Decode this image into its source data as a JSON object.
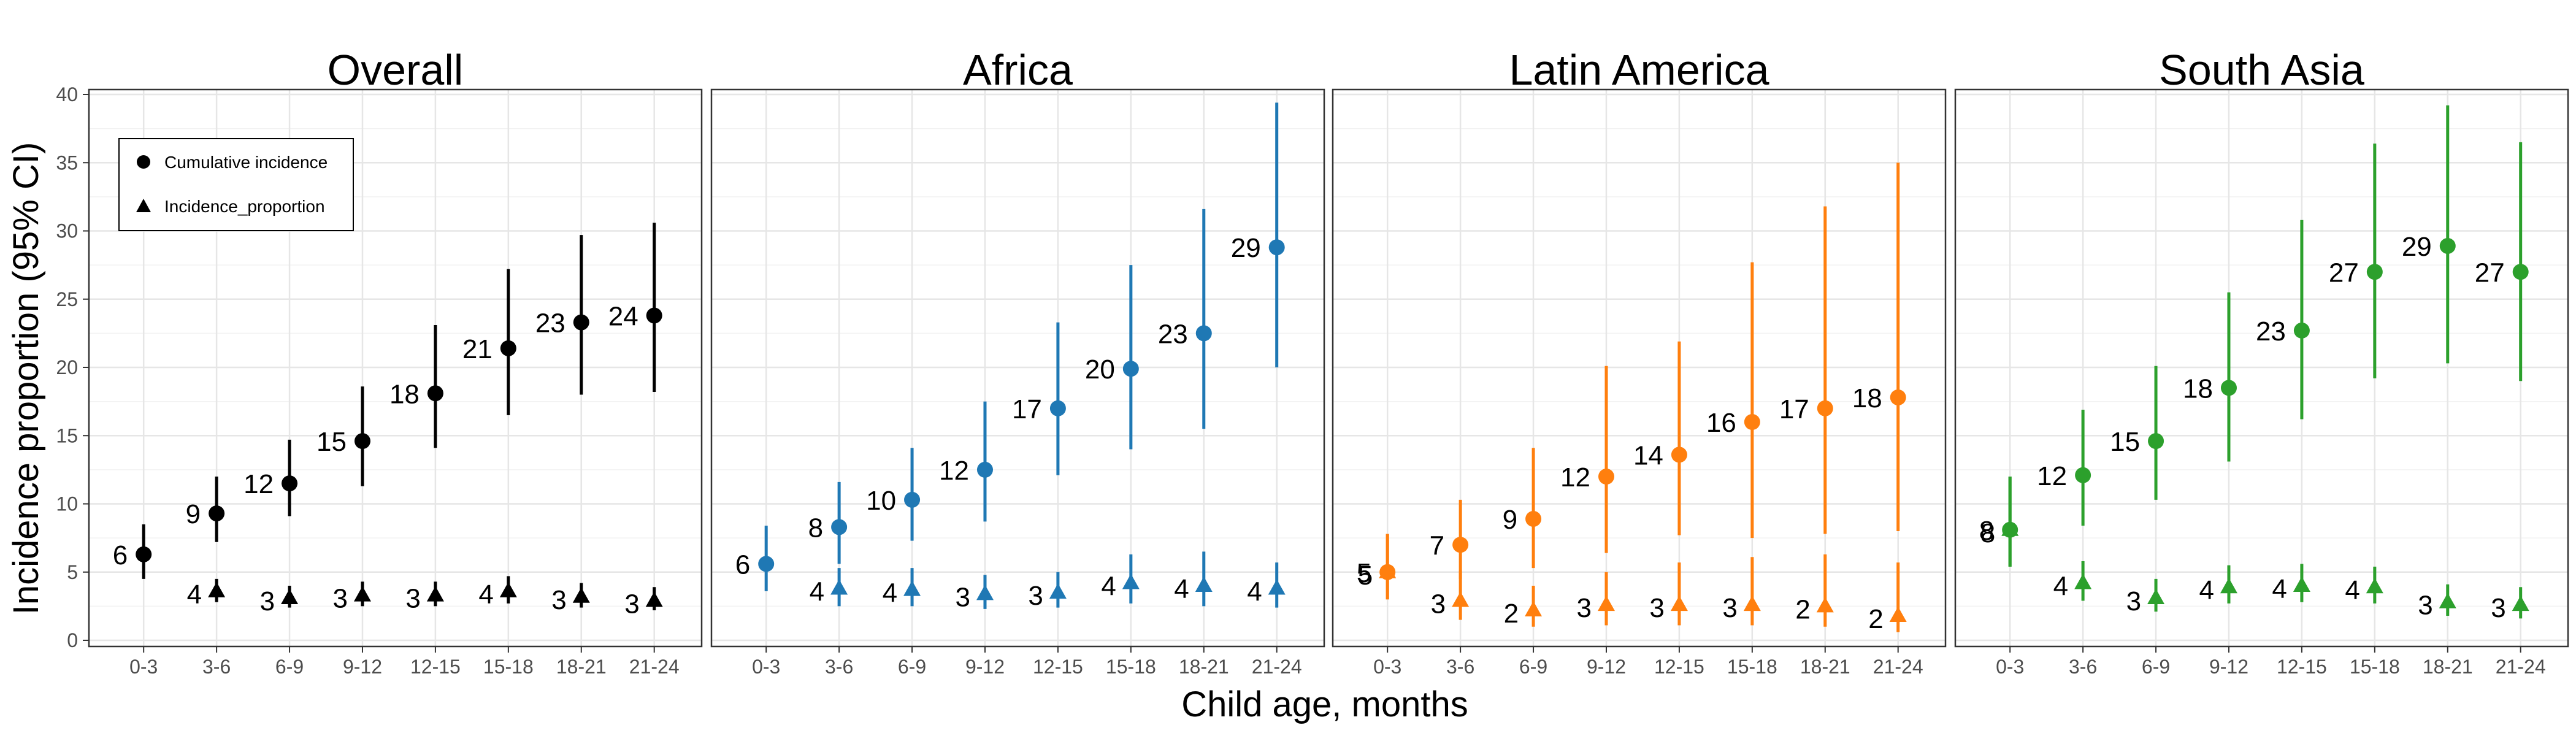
{
  "chart_data": {
    "type": "scatter",
    "shared_ylabel": "Incidence proportion (95% CI)",
    "shared_xlabel": "Child age, months",
    "ylim": [
      0,
      40
    ],
    "yticks": [
      "0",
      "5",
      "10",
      "15",
      "20",
      "25",
      "30",
      "35",
      "40"
    ],
    "categories": [
      "0-3",
      "3-6",
      "6-9",
      "9-12",
      "12-15",
      "15-18",
      "18-21",
      "21-24"
    ],
    "grid": true,
    "legend": {
      "placement": "top-left of first panel",
      "entries": [
        {
          "label": "Cumulative incidence",
          "marker": "circle"
        },
        {
          "label": "Incidence_proportion",
          "marker": "triangle"
        }
      ]
    },
    "panels": [
      {
        "title": "Overall",
        "color": "#000000",
        "cumulative": [
          {
            "x": "0-3",
            "y": 6.3,
            "lo": 4.5,
            "hi": 8.5,
            "label": "6"
          },
          {
            "x": "3-6",
            "y": 9.3,
            "lo": 7.2,
            "hi": 12.0,
            "label": "9"
          },
          {
            "x": "6-9",
            "y": 11.5,
            "lo": 9.1,
            "hi": 14.7,
            "label": "12"
          },
          {
            "x": "9-12",
            "y": 14.6,
            "lo": 11.3,
            "hi": 18.6,
            "label": "15"
          },
          {
            "x": "12-15",
            "y": 18.1,
            "lo": 14.1,
            "hi": 23.1,
            "label": "18"
          },
          {
            "x": "15-18",
            "y": 21.4,
            "lo": 16.5,
            "hi": 27.2,
            "label": "21"
          },
          {
            "x": "18-21",
            "y": 23.3,
            "lo": 18.0,
            "hi": 29.7,
            "label": "23"
          },
          {
            "x": "21-24",
            "y": 23.8,
            "lo": 18.2,
            "hi": 30.6,
            "label": "24"
          }
        ],
        "incidence": [
          {
            "x": "3-6",
            "y": 3.6,
            "lo": 2.8,
            "hi": 4.5,
            "label": "4"
          },
          {
            "x": "6-9",
            "y": 3.1,
            "lo": 2.4,
            "hi": 4.0,
            "label": "3"
          },
          {
            "x": "9-12",
            "y": 3.3,
            "lo": 2.5,
            "hi": 4.3,
            "label": "3"
          },
          {
            "x": "12-15",
            "y": 3.3,
            "lo": 2.5,
            "hi": 4.3,
            "label": "3"
          },
          {
            "x": "15-18",
            "y": 3.6,
            "lo": 2.7,
            "hi": 4.7,
            "label": "4"
          },
          {
            "x": "18-21",
            "y": 3.2,
            "lo": 2.4,
            "hi": 4.2,
            "label": "3"
          },
          {
            "x": "21-24",
            "y": 2.9,
            "lo": 2.2,
            "hi": 3.9,
            "label": "3"
          }
        ]
      },
      {
        "title": "Africa",
        "color": "#1f78b4",
        "cumulative": [
          {
            "x": "0-3",
            "y": 5.6,
            "lo": 3.6,
            "hi": 8.4,
            "label": "6"
          },
          {
            "x": "3-6",
            "y": 8.3,
            "lo": 5.6,
            "hi": 11.6,
            "label": "8"
          },
          {
            "x": "6-9",
            "y": 10.3,
            "lo": 7.3,
            "hi": 14.1,
            "label": "10"
          },
          {
            "x": "9-12",
            "y": 12.5,
            "lo": 8.7,
            "hi": 17.5,
            "label": "12"
          },
          {
            "x": "12-15",
            "y": 17.0,
            "lo": 12.1,
            "hi": 23.3,
            "label": "17"
          },
          {
            "x": "15-18",
            "y": 19.9,
            "lo": 14.0,
            "hi": 27.5,
            "label": "20"
          },
          {
            "x": "18-21",
            "y": 22.5,
            "lo": 15.5,
            "hi": 31.6,
            "label": "23"
          },
          {
            "x": "21-24",
            "y": 28.8,
            "lo": 20.0,
            "hi": 39.4,
            "label": "29"
          }
        ],
        "incidence": [
          {
            "x": "3-6",
            "y": 3.8,
            "lo": 2.5,
            "hi": 5.3,
            "label": "4"
          },
          {
            "x": "6-9",
            "y": 3.7,
            "lo": 2.5,
            "hi": 5.3,
            "label": "4"
          },
          {
            "x": "9-12",
            "y": 3.4,
            "lo": 2.3,
            "hi": 4.8,
            "label": "3"
          },
          {
            "x": "12-15",
            "y": 3.5,
            "lo": 2.4,
            "hi": 5.0,
            "label": "3"
          },
          {
            "x": "15-18",
            "y": 4.2,
            "lo": 2.7,
            "hi": 6.3,
            "label": "4"
          },
          {
            "x": "18-21",
            "y": 4.0,
            "lo": 2.5,
            "hi": 6.5,
            "label": "4"
          },
          {
            "x": "21-24",
            "y": 3.8,
            "lo": 2.4,
            "hi": 5.7,
            "label": "4"
          }
        ]
      },
      {
        "title": "Latin America",
        "color": "#ff7f0e",
        "cumulative": [
          {
            "x": "0-3",
            "y": 5.0,
            "lo": 3.0,
            "hi": 7.8,
            "label": "5"
          },
          {
            "x": "3-6",
            "y": 7.0,
            "lo": 4.5,
            "hi": 10.3,
            "label": "7"
          },
          {
            "x": "6-9",
            "y": 8.9,
            "lo": 5.3,
            "hi": 14.1,
            "label": "9"
          },
          {
            "x": "9-12",
            "y": 12.0,
            "lo": 6.4,
            "hi": 20.1,
            "label": "12"
          },
          {
            "x": "12-15",
            "y": 13.6,
            "lo": 7.7,
            "hi": 21.9,
            "label": "14"
          },
          {
            "x": "15-18",
            "y": 16.0,
            "lo": 7.5,
            "hi": 27.7,
            "label": "16"
          },
          {
            "x": "18-21",
            "y": 17.0,
            "lo": 7.8,
            "hi": 31.8,
            "label": "17"
          },
          {
            "x": "21-24",
            "y": 17.8,
            "lo": 8.0,
            "hi": 35.0,
            "label": "18"
          }
        ],
        "incidence": [
          {
            "x": "0-3",
            "y": 5.0,
            "lo": 3.0,
            "hi": 7.8,
            "label": "5"
          },
          {
            "x": "3-6",
            "y": 2.9,
            "lo": 1.5,
            "hi": 5.1,
            "label": "3"
          },
          {
            "x": "6-9",
            "y": 2.2,
            "lo": 1.0,
            "hi": 4.0,
            "label": "2"
          },
          {
            "x": "9-12",
            "y": 2.6,
            "lo": 1.1,
            "hi": 5.0,
            "label": "3"
          },
          {
            "x": "12-15",
            "y": 2.6,
            "lo": 1.1,
            "hi": 5.7,
            "label": "3"
          },
          {
            "x": "15-18",
            "y": 2.6,
            "lo": 1.1,
            "hi": 6.1,
            "label": "3"
          },
          {
            "x": "18-21",
            "y": 2.5,
            "lo": 1.0,
            "hi": 6.3,
            "label": "2"
          },
          {
            "x": "21-24",
            "y": 1.8,
            "lo": 0.6,
            "hi": 5.7,
            "label": "2"
          }
        ]
      },
      {
        "title": "South Asia",
        "color": "#2ca02c",
        "cumulative": [
          {
            "x": "0-3",
            "y": 8.1,
            "lo": 5.4,
            "hi": 12.0,
            "label": "8"
          },
          {
            "x": "3-6",
            "y": 12.1,
            "lo": 8.4,
            "hi": 16.9,
            "label": "12"
          },
          {
            "x": "6-9",
            "y": 14.6,
            "lo": 10.3,
            "hi": 20.1,
            "label": "15"
          },
          {
            "x": "9-12",
            "y": 18.5,
            "lo": 13.1,
            "hi": 25.5,
            "label": "18"
          },
          {
            "x": "12-15",
            "y": 22.7,
            "lo": 16.2,
            "hi": 30.8,
            "label": "23"
          },
          {
            "x": "15-18",
            "y": 27.0,
            "lo": 19.2,
            "hi": 36.4,
            "label": "27"
          },
          {
            "x": "18-21",
            "y": 28.9,
            "lo": 20.3,
            "hi": 39.2,
            "label": "29"
          },
          {
            "x": "21-24",
            "y": 27.0,
            "lo": 19.0,
            "hi": 36.5,
            "label": "27"
          }
        ],
        "incidence": [
          {
            "x": "0-3",
            "y": 8.1,
            "lo": 5.4,
            "hi": 12.0,
            "label": "8"
          },
          {
            "x": "3-6",
            "y": 4.2,
            "lo": 2.9,
            "hi": 5.8,
            "label": "4"
          },
          {
            "x": "6-9",
            "y": 3.1,
            "lo": 2.1,
            "hi": 4.5,
            "label": "3"
          },
          {
            "x": "9-12",
            "y": 3.9,
            "lo": 2.7,
            "hi": 5.5,
            "label": "4"
          },
          {
            "x": "12-15",
            "y": 4.0,
            "lo": 2.8,
            "hi": 5.6,
            "label": "4"
          },
          {
            "x": "15-18",
            "y": 3.9,
            "lo": 2.7,
            "hi": 5.4,
            "label": "4"
          },
          {
            "x": "18-21",
            "y": 2.8,
            "lo": 1.8,
            "hi": 4.1,
            "label": "3"
          },
          {
            "x": "21-24",
            "y": 2.6,
            "lo": 1.6,
            "hi": 3.9,
            "label": "3"
          }
        ]
      }
    ]
  }
}
